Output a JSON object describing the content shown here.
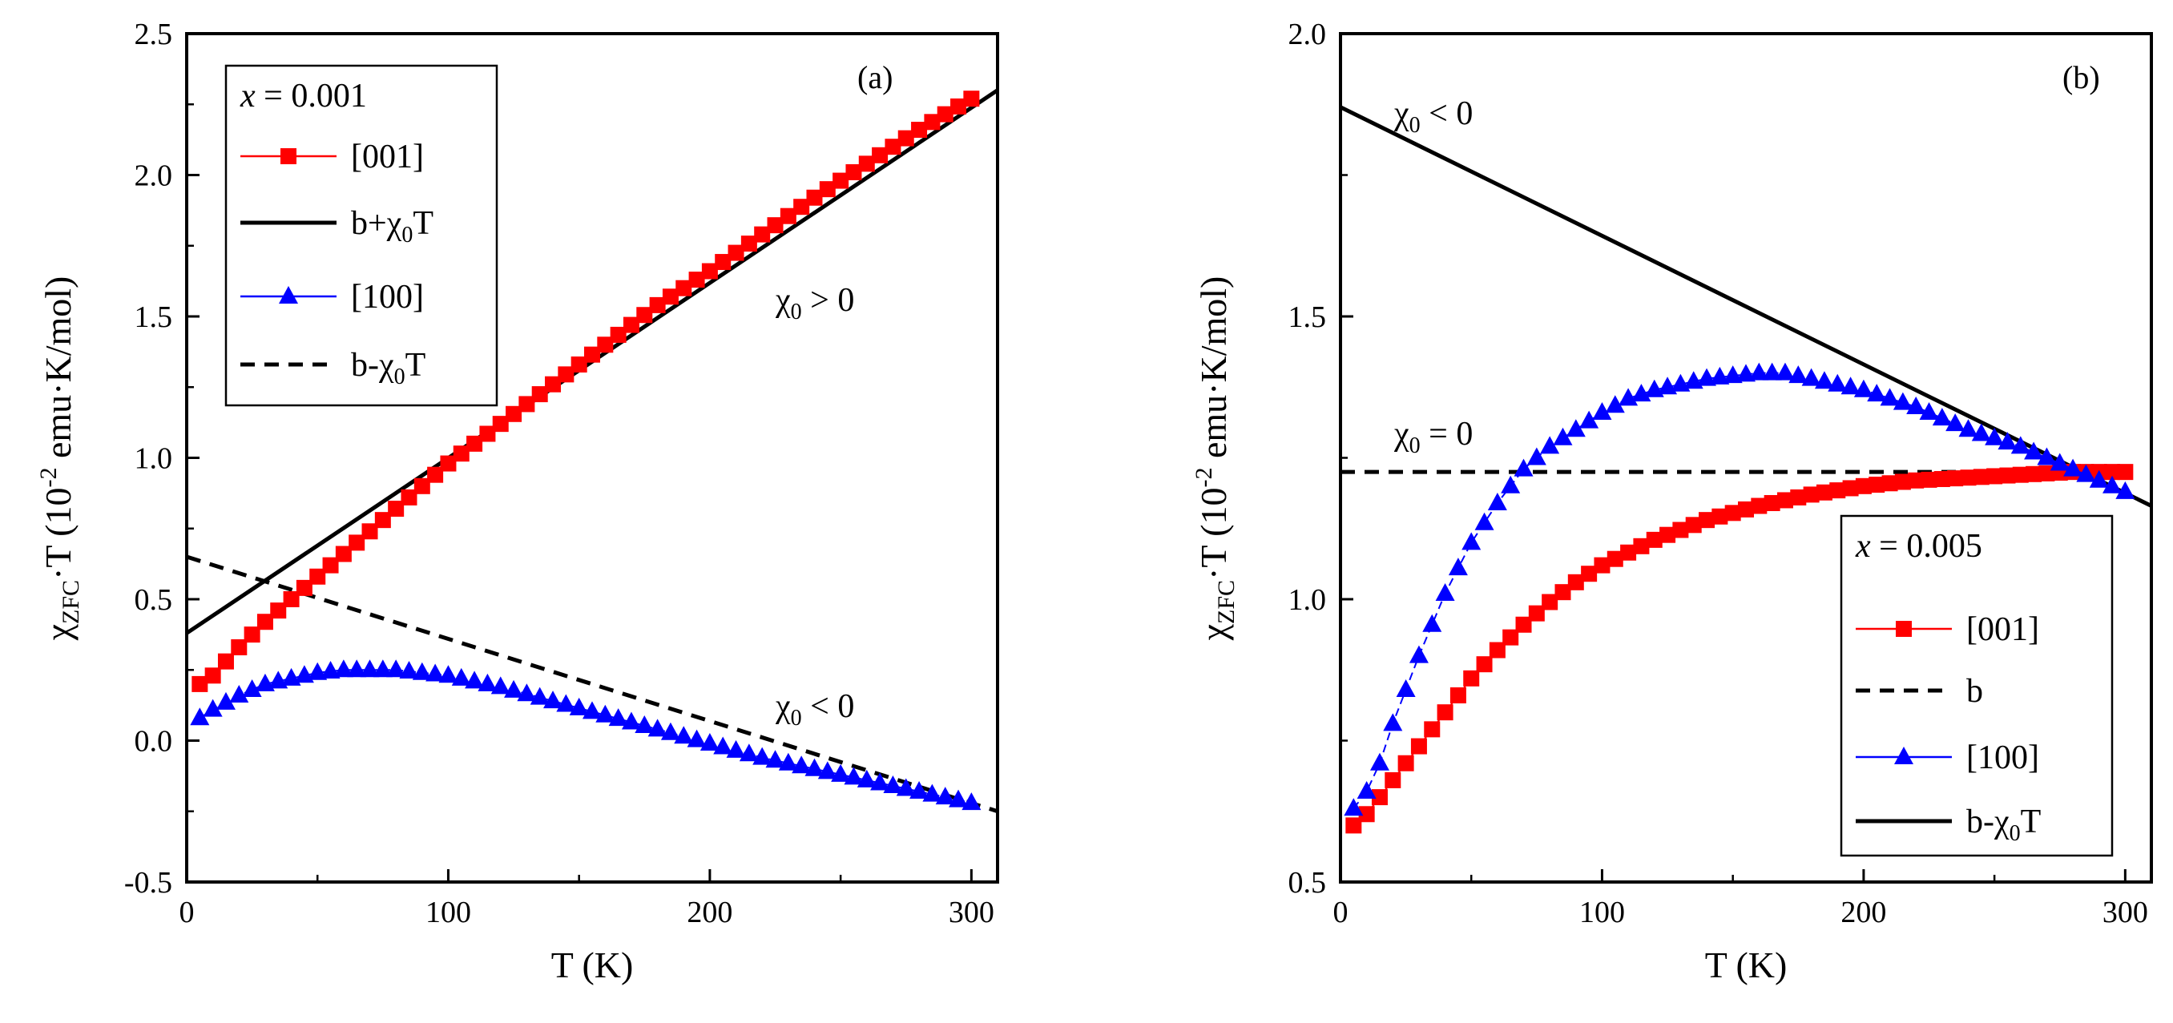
{
  "chart_data": [
    {
      "type": "scatter",
      "panel_label": "(a)",
      "xlabel": "T  (K)",
      "ylabel": {
        "chi": "χ",
        "sub": "ZFC",
        "rest": "·T  (10",
        "sup": "-2",
        "end": " emu·K/mol)"
      },
      "xlim": [
        0,
        310
      ],
      "ylim": [
        -0.5,
        2.5
      ],
      "xticks": [
        "0",
        "100",
        "200",
        "300"
      ],
      "yticks": [
        "-0.5",
        "0.0",
        "0.5",
        "1.0",
        "1.5",
        "2.0",
        "2.5"
      ],
      "legend": {
        "title_var": "x",
        "title_rest": " = 0.001",
        "entries": [
          {
            "label": "[001]"
          },
          {
            "label_main": "b+χ",
            "label_sub": "0",
            "label_end": "T"
          },
          {
            "label": "[100]"
          },
          {
            "label_main": "b-χ",
            "label_sub": "0",
            "label_end": "T"
          }
        ]
      },
      "annotations": [
        {
          "main": "χ",
          "sub": "0",
          "rest": " > 0"
        },
        {
          "main": "χ",
          "sub": "0",
          "rest": " < 0"
        }
      ],
      "lines": [
        {
          "name": "b+χ0T",
          "style": "solid",
          "color": "#000000",
          "x": [
            0,
            310
          ],
          "y": [
            0.38,
            2.3
          ]
        },
        {
          "name": "b-χ0T",
          "style": "dashed",
          "color": "#000000",
          "x": [
            0,
            310
          ],
          "y": [
            0.65,
            -0.25
          ]
        }
      ],
      "series": [
        {
          "name": "[001]",
          "marker": "square",
          "color": "#ff0000",
          "x": [
            5,
            10,
            15,
            20,
            30,
            40,
            50,
            60,
            80,
            100,
            120,
            140,
            160,
            180,
            200,
            220,
            240,
            260,
            280,
            300
          ],
          "y": [
            0.2,
            0.23,
            0.28,
            0.33,
            0.42,
            0.5,
            0.58,
            0.66,
            0.82,
            0.98,
            1.12,
            1.26,
            1.4,
            1.54,
            1.66,
            1.79,
            1.92,
            2.04,
            2.16,
            2.27
          ]
        },
        {
          "name": "[100]",
          "marker": "triangle",
          "color": "#0000ff",
          "x": [
            5,
            10,
            20,
            30,
            40,
            50,
            60,
            70,
            80,
            90,
            100,
            120,
            140,
            160,
            180,
            200,
            220,
            240,
            260,
            280,
            300
          ],
          "y": [
            0.08,
            0.11,
            0.16,
            0.2,
            0.22,
            0.24,
            0.25,
            0.25,
            0.25,
            0.24,
            0.23,
            0.19,
            0.14,
            0.09,
            0.04,
            -0.01,
            -0.06,
            -0.1,
            -0.14,
            -0.18,
            -0.22
          ]
        }
      ]
    },
    {
      "type": "scatter",
      "panel_label": "(b)",
      "xlabel": "T  (K)",
      "ylabel": {
        "chi": "χ",
        "sub": "ZFC",
        "rest": "·T  (10",
        "sup": "-2",
        "end": " emu·K/mol)"
      },
      "xlim": [
        0,
        310
      ],
      "ylim": [
        0.5,
        2.0
      ],
      "xticks": [
        "0",
        "100",
        "200",
        "300"
      ],
      "yticks": [
        "0.5",
        "1.0",
        "1.5",
        "2.0"
      ],
      "legend": {
        "title_var": "x",
        "title_rest": " = 0.005",
        "entries": [
          {
            "label": "[001]"
          },
          {
            "label": "b"
          },
          {
            "label": "[100]"
          },
          {
            "label_main": "b-χ",
            "label_sub": "0",
            "label_end": "T"
          }
        ]
      },
      "annotations": [
        {
          "main": "χ",
          "sub": "0",
          "rest": " < 0"
        },
        {
          "main": "χ",
          "sub": "0",
          "rest": " = 0"
        }
      ],
      "lines": [
        {
          "name": "b-χ0T",
          "style": "solid",
          "color": "#000000",
          "x": [
            0,
            310
          ],
          "y": [
            1.87,
            1.165
          ]
        },
        {
          "name": "b",
          "style": "dashed",
          "color": "#000000",
          "x": [
            0,
            300
          ],
          "y": [
            1.225,
            1.225
          ]
        }
      ],
      "series": [
        {
          "name": "[001]",
          "marker": "square",
          "color": "#ff0000",
          "x": [
            5,
            10,
            15,
            20,
            30,
            40,
            50,
            60,
            70,
            80,
            90,
            100,
            120,
            140,
            160,
            180,
            200,
            220,
            240,
            260,
            280,
            300
          ],
          "y": [
            0.6,
            0.62,
            0.65,
            0.68,
            0.74,
            0.8,
            0.86,
            0.91,
            0.955,
            0.995,
            1.03,
            1.06,
            1.105,
            1.14,
            1.165,
            1.185,
            1.2,
            1.21,
            1.215,
            1.22,
            1.225,
            1.225
          ]
        },
        {
          "name": "[100]",
          "marker": "triangle",
          "color": "#0000ff",
          "x": [
            5,
            10,
            15,
            20,
            30,
            40,
            50,
            60,
            70,
            80,
            90,
            100,
            110,
            120,
            140,
            160,
            170,
            180,
            200,
            220,
            240,
            260,
            280,
            300
          ],
          "y": [
            0.63,
            0.66,
            0.71,
            0.78,
            0.9,
            1.01,
            1.1,
            1.17,
            1.23,
            1.27,
            1.3,
            1.33,
            1.355,
            1.37,
            1.39,
            1.4,
            1.4,
            1.39,
            1.37,
            1.34,
            1.3,
            1.27,
            1.23,
            1.19
          ]
        }
      ]
    }
  ]
}
